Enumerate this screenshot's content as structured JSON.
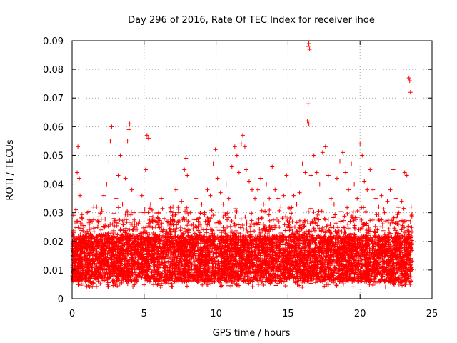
{
  "chart_data": {
    "type": "scatter",
    "title": "Day 296 of 2016, Rate Of TEC Index for receiver ihoe",
    "xlabel": "GPS time / hours",
    "ylabel": "ROTI / TECUs",
    "xlim": [
      0,
      25
    ],
    "ylim": [
      0,
      0.09
    ],
    "grid": true,
    "marker": "plus",
    "color": "#ff0000",
    "x_ticks": [
      {
        "value": 0,
        "label": "0"
      },
      {
        "value": 5,
        "label": "5"
      },
      {
        "value": 10,
        "label": "10"
      },
      {
        "value": 15,
        "label": "15"
      },
      {
        "value": 20,
        "label": "20"
      },
      {
        "value": 25,
        "label": "25"
      }
    ],
    "y_ticks": [
      {
        "value": 0,
        "label": "0"
      },
      {
        "value": 0.01,
        "label": "0.01"
      },
      {
        "value": 0.02,
        "label": "0.02"
      },
      {
        "value": 0.03,
        "label": "0.03"
      },
      {
        "value": 0.04,
        "label": "0.04"
      },
      {
        "value": 0.05,
        "label": "0.05"
      },
      {
        "value": 0.06,
        "label": "0.06"
      },
      {
        "value": 0.07,
        "label": "0.07"
      },
      {
        "value": 0.08,
        "label": "0.08"
      },
      {
        "value": 0.09,
        "label": "0.09"
      }
    ],
    "series": [
      {
        "name": "ROTI",
        "points": [
          [
            0.1,
            0.023
          ],
          [
            0.25,
            0.031
          ],
          [
            0.35,
            0.044
          ],
          [
            0.4,
            0.053
          ],
          [
            0.5,
            0.042
          ],
          [
            0.55,
            0.036
          ],
          [
            0.7,
            0.028
          ],
          [
            0.85,
            0.02
          ],
          [
            0.95,
            0.012
          ],
          [
            1.05,
            0.03
          ],
          [
            1.2,
            0.026
          ],
          [
            1.35,
            0.022
          ],
          [
            1.5,
            0.018
          ],
          [
            1.7,
            0.032
          ],
          [
            1.85,
            0.027
          ],
          [
            2.0,
            0.024
          ],
          [
            2.2,
            0.036
          ],
          [
            2.4,
            0.04
          ],
          [
            2.55,
            0.048
          ],
          [
            2.65,
            0.055
          ],
          [
            2.75,
            0.06
          ],
          [
            2.9,
            0.047
          ],
          [
            3.05,
            0.035
          ],
          [
            3.2,
            0.043
          ],
          [
            3.35,
            0.05
          ],
          [
            3.5,
            0.033
          ],
          [
            3.7,
            0.042
          ],
          [
            3.85,
            0.055
          ],
          [
            3.95,
            0.059
          ],
          [
            4.0,
            0.061
          ],
          [
            4.15,
            0.038
          ],
          [
            4.3,
            0.03
          ],
          [
            4.5,
            0.026
          ],
          [
            4.7,
            0.022
          ],
          [
            4.85,
            0.036
          ],
          [
            5.0,
            0.03
          ],
          [
            5.1,
            0.045
          ],
          [
            5.2,
            0.057
          ],
          [
            5.3,
            0.056
          ],
          [
            5.45,
            0.033
          ],
          [
            5.6,
            0.027
          ],
          [
            5.8,
            0.025
          ],
          [
            6.0,
            0.03
          ],
          [
            6.2,
            0.035
          ],
          [
            6.4,
            0.028
          ],
          [
            6.6,
            0.023
          ],
          [
            6.8,
            0.026
          ],
          [
            7.0,
            0.032
          ],
          [
            7.2,
            0.038
          ],
          [
            7.4,
            0.03
          ],
          [
            7.6,
            0.034
          ],
          [
            7.8,
            0.045
          ],
          [
            7.9,
            0.049
          ],
          [
            8.0,
            0.043
          ],
          [
            8.2,
            0.03
          ],
          [
            8.4,
            0.026
          ],
          [
            8.6,
            0.035
          ],
          [
            8.8,
            0.028
          ],
          [
            9.0,
            0.033
          ],
          [
            9.2,
            0.03
          ],
          [
            9.4,
            0.038
          ],
          [
            9.6,
            0.036
          ],
          [
            9.8,
            0.047
          ],
          [
            9.95,
            0.052
          ],
          [
            10.1,
            0.042
          ],
          [
            10.3,
            0.037
          ],
          [
            10.5,
            0.033
          ],
          [
            10.7,
            0.04
          ],
          [
            10.9,
            0.035
          ],
          [
            11.1,
            0.046
          ],
          [
            11.3,
            0.053
          ],
          [
            11.45,
            0.05
          ],
          [
            11.6,
            0.044
          ],
          [
            11.75,
            0.054
          ],
          [
            11.85,
            0.057
          ],
          [
            12.0,
            0.053
          ],
          [
            12.1,
            0.045
          ],
          [
            12.3,
            0.041
          ],
          [
            12.5,
            0.038
          ],
          [
            12.7,
            0.035
          ],
          [
            12.9,
            0.038
          ],
          [
            13.1,
            0.042
          ],
          [
            13.3,
            0.033
          ],
          [
            13.5,
            0.04
          ],
          [
            13.7,
            0.035
          ],
          [
            13.9,
            0.046
          ],
          [
            14.1,
            0.038
          ],
          [
            14.3,
            0.035
          ],
          [
            14.5,
            0.032
          ],
          [
            14.7,
            0.036
          ],
          [
            14.9,
            0.043
          ],
          [
            15.0,
            0.048
          ],
          [
            15.2,
            0.04
          ],
          [
            15.4,
            0.036
          ],
          [
            15.6,
            0.033
          ],
          [
            15.8,
            0.037
          ],
          [
            16.0,
            0.047
          ],
          [
            16.2,
            0.044
          ],
          [
            16.35,
            0.062
          ],
          [
            16.4,
            0.068
          ],
          [
            16.45,
            0.061
          ],
          [
            16.4,
            0.088
          ],
          [
            16.45,
            0.089
          ],
          [
            16.5,
            0.087
          ],
          [
            16.6,
            0.043
          ],
          [
            16.8,
            0.05
          ],
          [
            17.0,
            0.044
          ],
          [
            17.2,
            0.04
          ],
          [
            17.4,
            0.051
          ],
          [
            17.6,
            0.053
          ],
          [
            17.8,
            0.043
          ],
          [
            18.0,
            0.035
          ],
          [
            18.2,
            0.033
          ],
          [
            18.4,
            0.042
          ],
          [
            18.6,
            0.048
          ],
          [
            18.8,
            0.051
          ],
          [
            19.0,
            0.044
          ],
          [
            19.2,
            0.038
          ],
          [
            19.4,
            0.047
          ],
          [
            19.6,
            0.04
          ],
          [
            19.8,
            0.035
          ],
          [
            20.0,
            0.054
          ],
          [
            20.15,
            0.05
          ],
          [
            20.3,
            0.041
          ],
          [
            20.5,
            0.038
          ],
          [
            20.7,
            0.045
          ],
          [
            20.9,
            0.038
          ],
          [
            21.1,
            0.035
          ],
          [
            21.3,
            0.032
          ],
          [
            21.5,
            0.036
          ],
          [
            21.7,
            0.03
          ],
          [
            21.9,
            0.034
          ],
          [
            22.1,
            0.038
          ],
          [
            22.3,
            0.045
          ],
          [
            22.5,
            0.035
          ],
          [
            22.7,
            0.03
          ],
          [
            22.9,
            0.034
          ],
          [
            23.1,
            0.044
          ],
          [
            23.25,
            0.043
          ],
          [
            23.4,
            0.077
          ],
          [
            23.45,
            0.076
          ],
          [
            23.5,
            0.072
          ],
          [
            23.55,
            0.032
          ]
        ]
      }
    ]
  }
}
